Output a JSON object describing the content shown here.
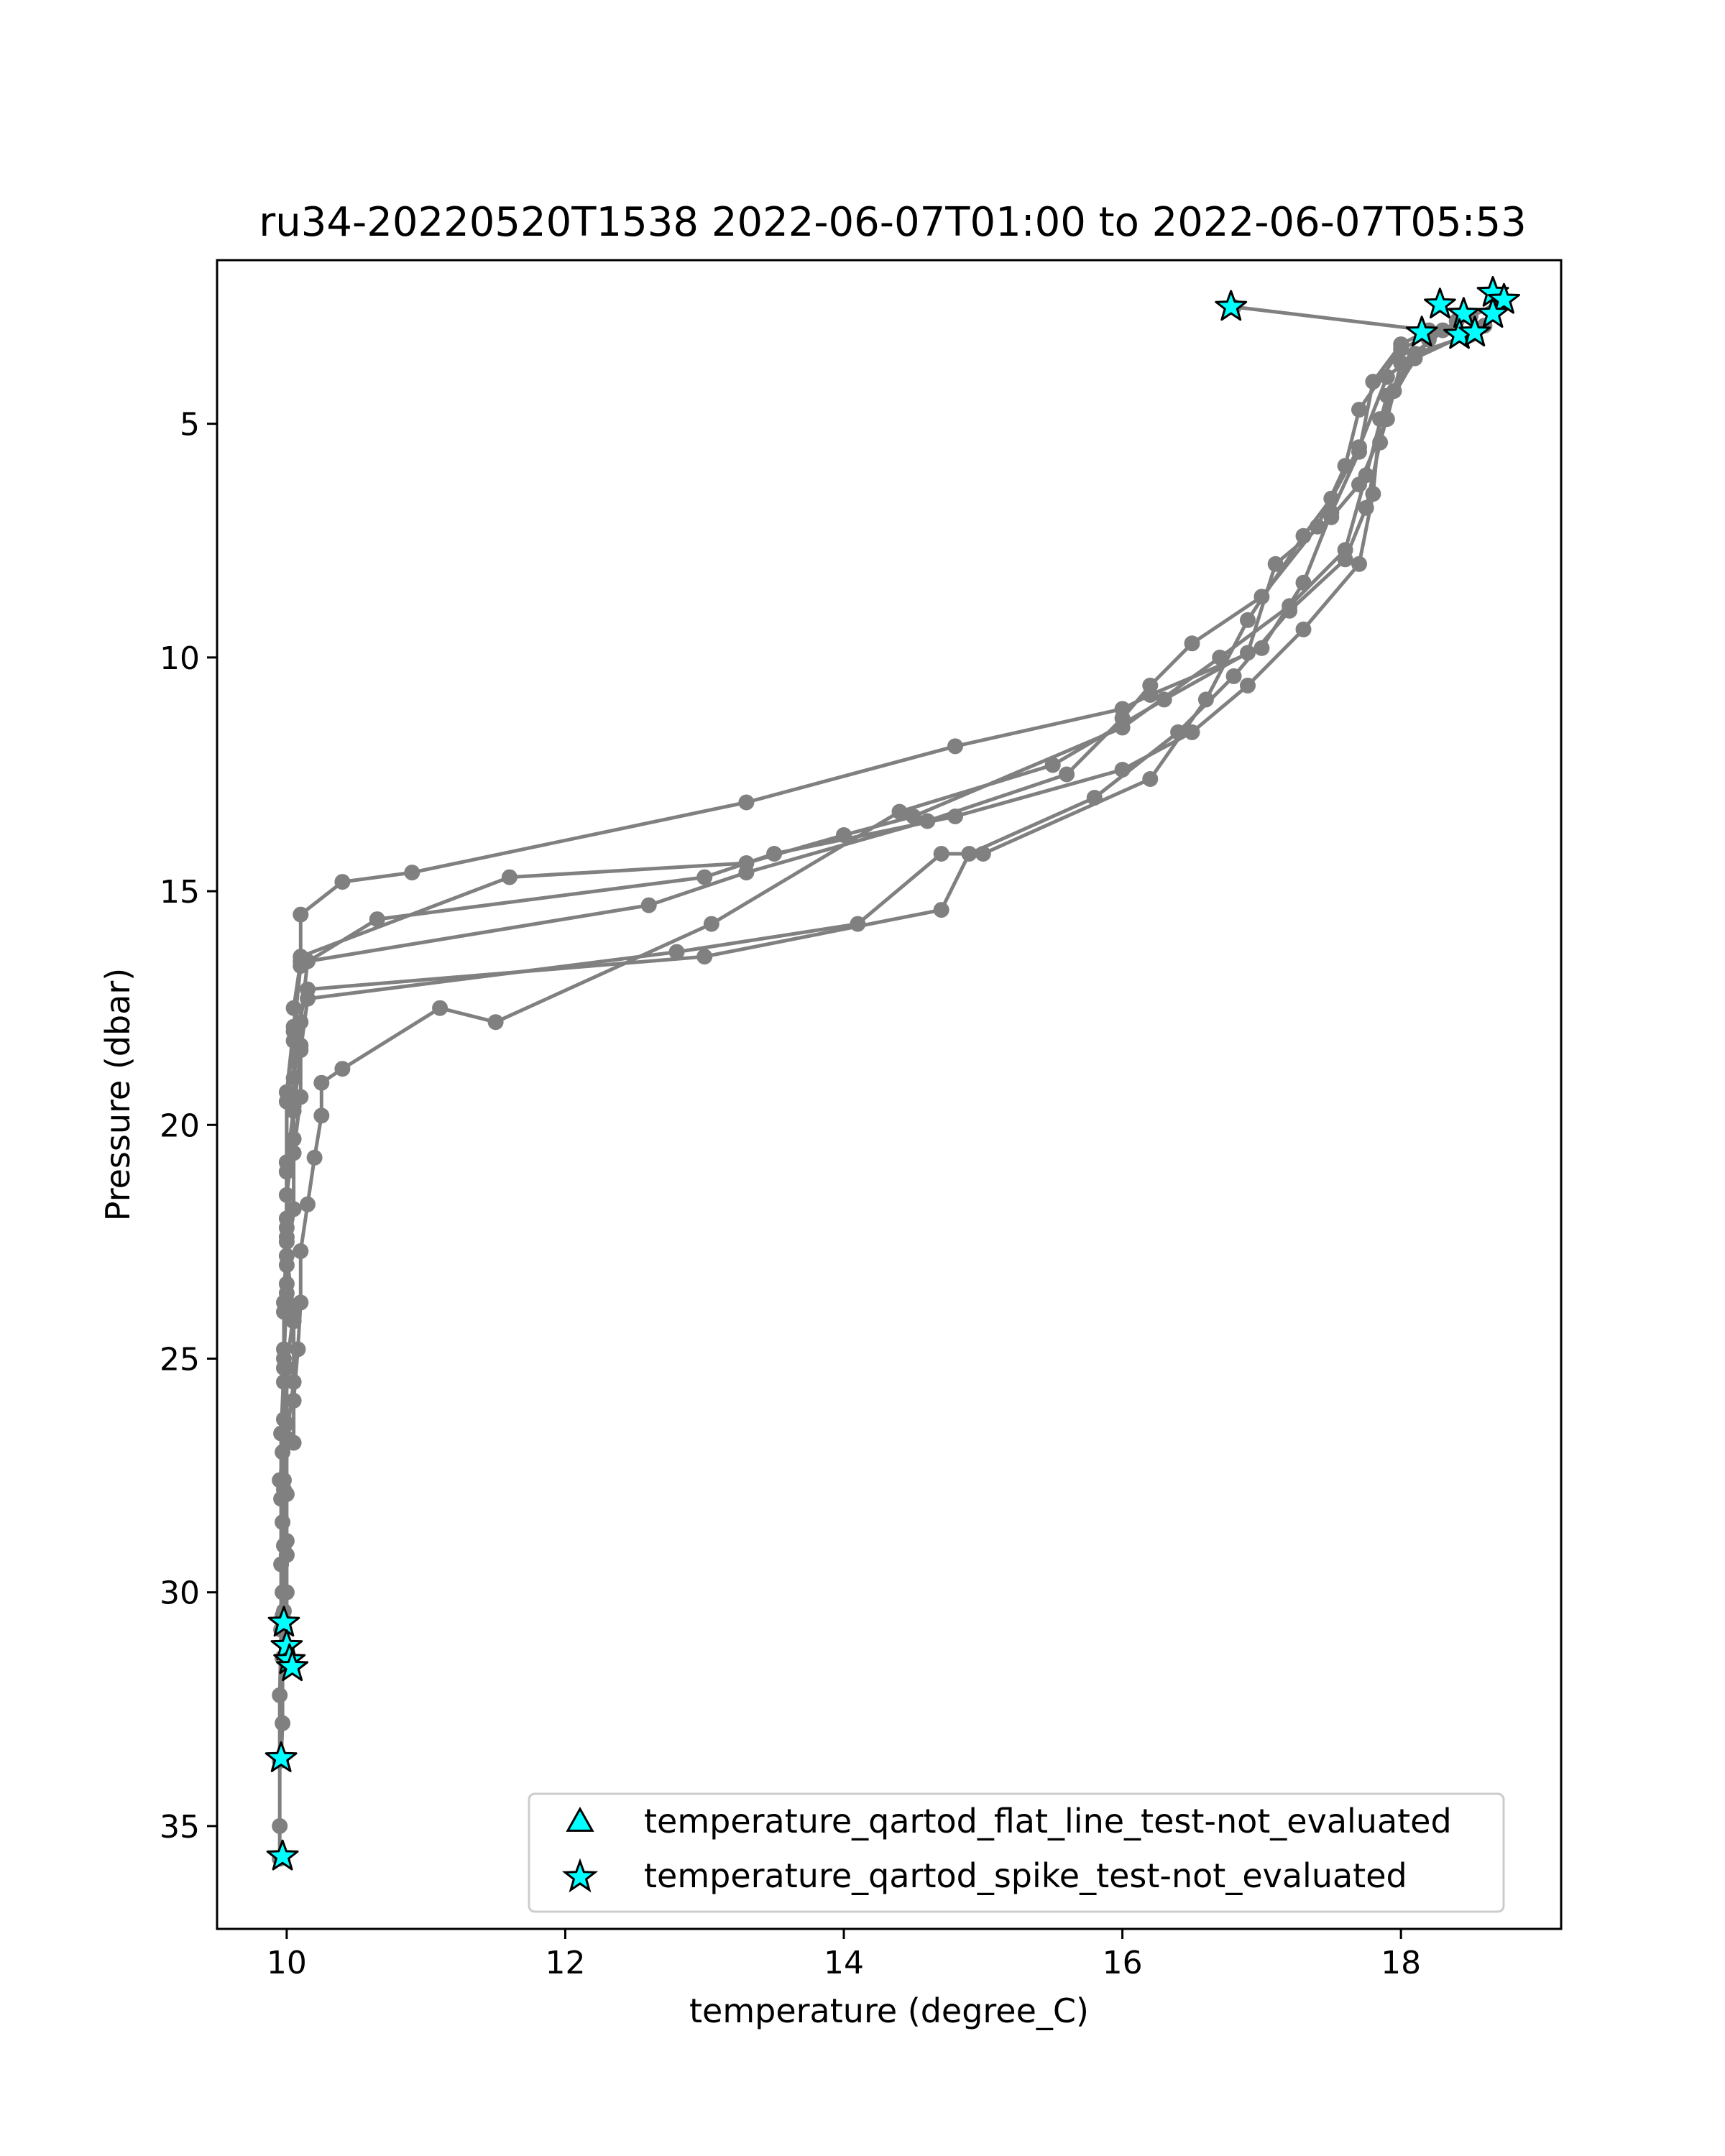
{
  "chart_data": {
    "type": "line",
    "title": "ru34-20220520T1538 2022-06-07T01:00 to 2022-06-07T05:53",
    "xlabel": "temperature (degree_C)",
    "ylabel": "Pressure (dbar)",
    "xlim": [
      9.5,
      19.15
    ],
    "ylim": [
      37.2,
      1.5
    ],
    "y_inverted": true,
    "grid": false,
    "xticks": [
      10,
      12,
      14,
      16,
      18
    ],
    "yticks": [
      5,
      10,
      15,
      20,
      25,
      30,
      35
    ],
    "xtick_labels": [
      "10",
      "12",
      "14",
      "16",
      "18"
    ],
    "ytick_labels": [
      "5",
      "10",
      "15",
      "20",
      "25",
      "30",
      "35"
    ],
    "line_color": "#808080",
    "series": [
      {
        "values": [
          [
            16.8,
            2.5
          ],
          [
            18.2,
            3.0
          ],
          [
            18.0,
            3.3
          ],
          [
            17.8,
            4.1
          ],
          [
            17.7,
            5.6
          ],
          [
            17.5,
            6.9
          ],
          [
            17.3,
            8.4
          ],
          [
            17.0,
            9.8
          ],
          [
            16.2,
            10.8
          ],
          [
            16.0,
            11.1
          ],
          [
            14.8,
            11.9
          ],
          [
            13.3,
            13.1
          ],
          [
            10.9,
            14.6
          ],
          [
            10.4,
            14.8
          ],
          [
            10.1,
            15.5
          ],
          [
            10.1,
            16.5
          ],
          [
            10.05,
            17.5
          ],
          [
            10.1,
            18.3
          ],
          [
            10.1,
            19.4
          ],
          [
            10.05,
            20.6
          ],
          [
            10.05,
            21.8
          ],
          [
            10.0,
            23.0
          ],
          [
            10.05,
            24.2
          ],
          [
            10.05,
            25.5
          ],
          [
            10.0,
            26.7
          ],
          [
            10.0,
            27.9
          ],
          [
            10.0,
            29.2
          ],
          [
            9.97,
            30.5
          ]
        ]
      },
      {
        "values": [
          [
            18.5,
            2.7
          ],
          [
            18.0,
            3.4
          ],
          [
            17.7,
            4.7
          ],
          [
            17.6,
            5.9
          ],
          [
            17.4,
            7.2
          ],
          [
            17.0,
            8.7
          ],
          [
            16.5,
            9.7
          ],
          [
            16.2,
            10.6
          ],
          [
            16.0,
            11.3
          ],
          [
            15.6,
            12.5
          ],
          [
            14.6,
            13.5
          ],
          [
            13.3,
            14.6
          ],
          [
            12.6,
            15.3
          ],
          [
            10.15,
            16.5
          ],
          [
            10.1,
            17.8
          ],
          [
            10.05,
            19.0
          ],
          [
            10.05,
            20.3
          ],
          [
            10.0,
            21.5
          ],
          [
            10.0,
            22.8
          ],
          [
            10.05,
            24.0
          ],
          [
            10.0,
            25.2
          ],
          [
            10.0,
            26.4
          ],
          [
            9.95,
            27.6
          ],
          [
            10.0,
            28.9
          ],
          [
            10.0,
            30.0
          ],
          [
            10.0,
            31.2
          ]
        ]
      },
      {
        "values": [
          [
            18.5,
            3.1
          ],
          [
            18.1,
            3.5
          ],
          [
            17.9,
            4.4
          ],
          [
            17.75,
            6.1
          ],
          [
            17.6,
            7.7
          ],
          [
            17.2,
            8.9
          ],
          [
            16.7,
            10.0
          ],
          [
            16.0,
            11.5
          ],
          [
            14.5,
            13.4
          ],
          [
            14.0,
            13.8
          ],
          [
            13.3,
            14.4
          ],
          [
            11.6,
            14.7
          ],
          [
            10.1,
            16.4
          ],
          [
            10.05,
            17.9
          ],
          [
            10.0,
            19.3
          ],
          [
            10.0,
            20.8
          ],
          [
            10.0,
            22.2
          ],
          [
            10.0,
            23.6
          ],
          [
            9.98,
            25.0
          ],
          [
            10.0,
            26.4
          ],
          [
            9.98,
            27.8
          ],
          [
            10.0,
            29.2
          ],
          [
            9.98,
            30.4
          ],
          [
            10.03,
            31.5
          ]
        ]
      },
      {
        "values": [
          [
            18.6,
            2.9
          ],
          [
            18.1,
            3.6
          ],
          [
            17.85,
            4.9
          ],
          [
            17.8,
            6.5
          ],
          [
            17.7,
            8.0
          ],
          [
            17.3,
            9.4
          ],
          [
            16.9,
            10.6
          ],
          [
            16.5,
            11.6
          ],
          [
            16.0,
            12.4
          ],
          [
            14.8,
            13.4
          ],
          [
            13.5,
            14.2
          ],
          [
            13.0,
            14.7
          ],
          [
            10.65,
            15.6
          ],
          [
            10.1,
            16.6
          ],
          [
            10.05,
            18.0
          ],
          [
            10.0,
            19.5
          ],
          [
            10.0,
            21.0
          ],
          [
            10.0,
            22.5
          ],
          [
            9.98,
            24.0
          ],
          [
            9.98,
            25.5
          ],
          [
            9.97,
            27.0
          ],
          [
            9.97,
            28.5
          ],
          [
            9.97,
            30.0
          ],
          [
            9.97,
            31.4
          ],
          [
            9.97,
            32.8
          ],
          [
            9.96,
            33.6
          ]
        ]
      },
      {
        "values": [
          [
            18.7,
            2.4
          ],
          [
            18.2,
            3.2
          ],
          [
            17.95,
            4.3
          ],
          [
            17.85,
            5.4
          ],
          [
            17.75,
            6.8
          ],
          [
            17.6,
            7.9
          ],
          [
            17.2,
            9.0
          ],
          [
            16.8,
            10.4
          ],
          [
            16.4,
            11.6
          ],
          [
            15.8,
            13.0
          ],
          [
            14.9,
            14.2
          ],
          [
            14.7,
            15.4
          ],
          [
            13.0,
            16.4
          ],
          [
            10.15,
            17.1
          ],
          [
            10.05,
            18.2
          ],
          [
            10.05,
            19.6
          ],
          [
            10.0,
            21.0
          ],
          [
            10.0,
            22.4
          ],
          [
            9.98,
            23.8
          ],
          [
            9.98,
            25.2
          ],
          [
            9.96,
            26.6
          ],
          [
            9.96,
            28.0
          ],
          [
            9.96,
            29.4
          ],
          [
            9.96,
            30.8
          ],
          [
            9.95,
            32.2
          ],
          [
            9.95,
            33.6
          ],
          [
            9.95,
            35.0
          ],
          [
            9.95,
            35.7
          ]
        ]
      },
      {
        "values": [
          [
            18.3,
            3.0
          ],
          [
            17.9,
            4.0
          ],
          [
            17.7,
            5.5
          ],
          [
            17.5,
            6.6
          ],
          [
            17.3,
            7.4
          ],
          [
            16.9,
            9.2
          ],
          [
            16.6,
            10.9
          ],
          [
            16.2,
            12.6
          ],
          [
            15.0,
            14.2
          ],
          [
            14.7,
            14.2
          ],
          [
            14.1,
            15.7
          ],
          [
            12.8,
            16.3
          ],
          [
            10.15,
            17.3
          ],
          [
            10.1,
            18.4
          ],
          [
            10.05,
            19.7
          ],
          [
            10.0,
            20.8
          ],
          [
            10.0,
            22.0
          ],
          [
            10.0,
            23.4
          ],
          [
            9.98,
            24.8
          ],
          [
            9.98,
            26.3
          ],
          [
            9.98,
            27.6
          ],
          [
            9.98,
            29.0
          ]
        ]
      },
      {
        "values": [
          [
            18.4,
            2.8
          ],
          [
            18.0,
            3.7
          ],
          [
            17.9,
            4.9
          ],
          [
            17.7,
            6.3
          ],
          [
            17.5,
            7.0
          ],
          [
            17.1,
            8.0
          ],
          [
            16.9,
            9.9
          ],
          [
            16.3,
            10.9
          ],
          [
            15.5,
            12.3
          ],
          [
            14.4,
            13.3
          ],
          [
            13.05,
            15.7
          ],
          [
            11.5,
            17.8
          ],
          [
            11.1,
            17.5
          ],
          [
            10.4,
            18.8
          ],
          [
            10.25,
            19.1
          ],
          [
            10.25,
            19.8
          ],
          [
            10.2,
            20.7
          ],
          [
            10.15,
            21.7
          ],
          [
            10.1,
            22.7
          ],
          [
            10.1,
            23.8
          ],
          [
            10.08,
            24.8
          ],
          [
            10.05,
            25.9
          ],
          [
            10.05,
            26.8
          ]
        ]
      }
    ],
    "flag_series": [
      {
        "name": "temperature_qartod_flat_line_test-not_evaluated",
        "marker": "triangle",
        "color": "#00FFFF",
        "values": []
      },
      {
        "name": "temperature_qartod_spike_test-not_evaluated",
        "marker": "star",
        "color": "#00FFFF",
        "values": [
          [
            16.78,
            2.5
          ],
          [
            18.28,
            2.45
          ],
          [
            18.66,
            2.2
          ],
          [
            18.74,
            2.35
          ],
          [
            18.45,
            2.65
          ],
          [
            18.66,
            2.65
          ],
          [
            18.15,
            3.05
          ],
          [
            18.42,
            3.1
          ],
          [
            18.53,
            3.05
          ],
          [
            9.98,
            30.65
          ],
          [
            10.0,
            31.15
          ],
          [
            10.02,
            31.45
          ],
          [
            10.04,
            31.6
          ],
          [
            9.96,
            33.55
          ],
          [
            9.97,
            35.65
          ]
        ]
      }
    ],
    "legend_position": "lower right"
  }
}
